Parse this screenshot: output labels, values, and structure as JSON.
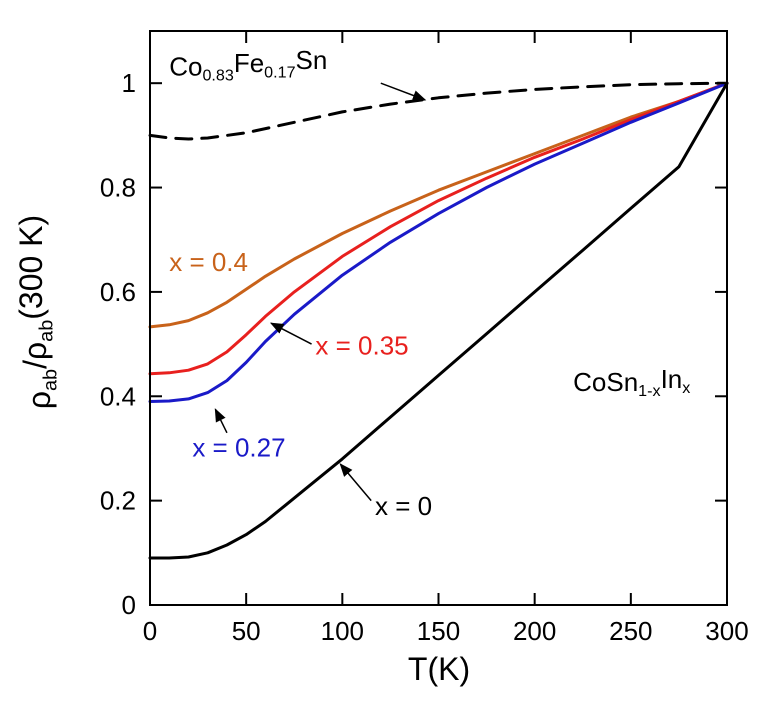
{
  "chart_data": {
    "type": "line",
    "xlabel": "T(K)",
    "ylabel": {
      "parts": [
        {
          "t": "ρ",
          "sub": false
        },
        {
          "t": "ab",
          "sub": true
        },
        {
          "t": "/ρ",
          "sub": false
        },
        {
          "t": "ab",
          "sub": true
        },
        {
          "t": "(300 K)",
          "sub": false
        }
      ]
    },
    "xlim": [
      0,
      300
    ],
    "ylim": [
      0,
      1.1
    ],
    "xticks": [
      0,
      50,
      100,
      150,
      200,
      250,
      300
    ],
    "yticks": [
      0,
      0.2,
      0.4,
      0.6,
      0.8,
      1
    ],
    "xtick_labels": [
      "0",
      "50",
      "100",
      "150",
      "200",
      "250",
      "300"
    ],
    "ytick_labels": [
      "0",
      "0.2",
      "0.4",
      "0.6",
      "0.8",
      "1"
    ],
    "grid": false,
    "legend": "none",
    "series": [
      {
        "color": "#000000",
        "dash": true,
        "x": [
          0,
          10,
          20,
          30,
          50,
          75,
          100,
          125,
          150,
          175,
          200,
          225,
          250,
          275,
          300
        ],
        "y": [
          0.9,
          0.895,
          0.893,
          0.895,
          0.905,
          0.925,
          0.945,
          0.96,
          0.972,
          0.981,
          0.988,
          0.993,
          0.997,
          0.999,
          1.0
        ]
      },
      {
        "color": "#c8621a",
        "x": [
          0,
          10,
          20,
          30,
          40,
          50,
          60,
          75,
          100,
          125,
          150,
          175,
          200,
          225,
          250,
          275,
          300
        ],
        "y": [
          0.533,
          0.537,
          0.545,
          0.56,
          0.58,
          0.605,
          0.63,
          0.663,
          0.712,
          0.755,
          0.795,
          0.83,
          0.865,
          0.9,
          0.935,
          0.965,
          1.0
        ]
      },
      {
        "color": "#e8201e",
        "x": [
          0,
          10,
          20,
          30,
          40,
          50,
          60,
          75,
          100,
          125,
          150,
          175,
          200,
          225,
          250,
          275,
          300
        ],
        "y": [
          0.443,
          0.445,
          0.45,
          0.462,
          0.485,
          0.518,
          0.553,
          0.6,
          0.668,
          0.725,
          0.775,
          0.818,
          0.858,
          0.893,
          0.93,
          0.965,
          1.0
        ]
      },
      {
        "color": "#1a1ac8",
        "x": [
          0,
          10,
          20,
          30,
          40,
          50,
          60,
          75,
          100,
          125,
          150,
          175,
          200,
          225,
          250,
          275,
          300
        ],
        "y": [
          0.39,
          0.391,
          0.395,
          0.407,
          0.43,
          0.465,
          0.505,
          0.557,
          0.632,
          0.695,
          0.75,
          0.8,
          0.845,
          0.885,
          0.925,
          0.962,
          1.0
        ]
      },
      {
        "color": "#000000",
        "x": [
          0,
          10,
          20,
          30,
          40,
          50,
          60,
          70,
          80,
          100,
          125,
          150,
          175,
          200,
          225,
          250,
          275,
          300
        ],
        "y": [
          0.09,
          0.09,
          0.092,
          0.1,
          0.115,
          0.135,
          0.16,
          0.19,
          0.22,
          0.28,
          0.36,
          0.44,
          0.52,
          0.6,
          0.68,
          0.76,
          0.84,
          1.0
        ]
      }
    ],
    "annotations": [
      {
        "parts": [
          {
            "t": "Co",
            "sub": false
          },
          {
            "t": "0.83",
            "sub": true
          },
          {
            "t": "Fe",
            "sub": false
          },
          {
            "t": "0.17",
            "sub": true
          },
          {
            "t": "Sn",
            "sub": false
          }
        ],
        "color": "#000000",
        "x": 10,
        "y": 1.015,
        "arrow": {
          "from": [
            120,
            1.0
          ],
          "to": [
            143,
            0.968
          ]
        }
      },
      {
        "parts": [
          {
            "t": "x = 0.4",
            "sub": false
          }
        ],
        "color": "#c8621a",
        "x": 10,
        "y": 0.64
      },
      {
        "parts": [
          {
            "t": "x = 0.35",
            "sub": false
          }
        ],
        "color": "#e8201e",
        "x": 86,
        "y": 0.48,
        "arrow": {
          "from": [
            84,
            0.5
          ],
          "to": [
            63,
            0.54
          ]
        }
      },
      {
        "parts": [
          {
            "t": "x = 0.27",
            "sub": false
          }
        ],
        "color": "#1a1ac8",
        "x": 22,
        "y": 0.285,
        "arrow": {
          "from": [
            40,
            0.33
          ],
          "to": [
            34,
            0.375
          ]
        }
      },
      {
        "parts": [
          {
            "t": "CoSn",
            "sub": false
          },
          {
            "t": "1-x",
            "sub": true
          },
          {
            "t": "In",
            "sub": false
          },
          {
            "t": "x",
            "sub": true
          }
        ],
        "color": "#000000",
        "x": 220,
        "y": 0.41
      },
      {
        "parts": [
          {
            "t": "x = 0",
            "sub": false
          }
        ],
        "color": "#000000",
        "x": 117,
        "y": 0.172,
        "arrow": {
          "from": [
            115,
            0.2
          ],
          "to": [
            99,
            0.27
          ]
        }
      }
    ]
  }
}
